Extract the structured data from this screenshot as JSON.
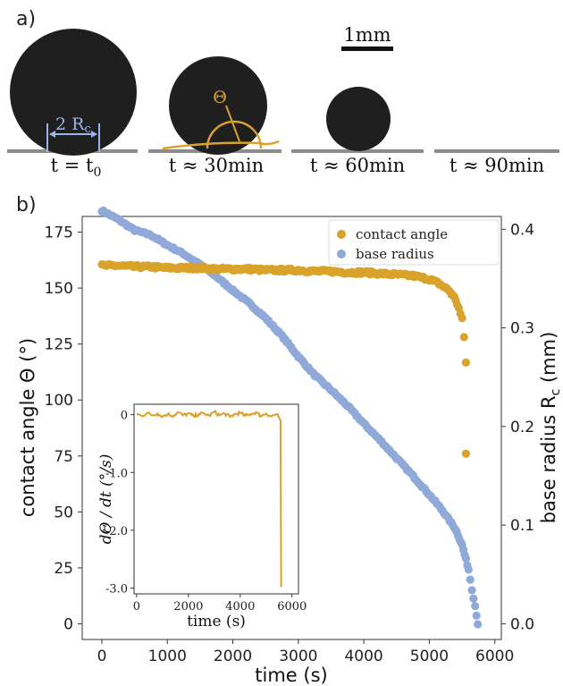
{
  "panel_a": {
    "label": "a)",
    "scale_bar": "1mm",
    "rc_label": "2 R",
    "rc_sub": "c",
    "theta_label": "Θ",
    "captions": [
      {
        "main": "t = t",
        "sub": "0"
      },
      {
        "main": "t ≈ 30min",
        "sub": ""
      },
      {
        "main": "t ≈ 60min",
        "sub": ""
      },
      {
        "main": "t ≈ 90min",
        "sub": ""
      }
    ]
  },
  "panel_b": {
    "label": "b)"
  },
  "colors": {
    "contact_angle": "#d9a22b",
    "base_radius": "#8fa9d9",
    "drop": "#1f1f1f",
    "substrate": "#8c8c8c",
    "annotation_blue": "#9bb5e6",
    "annotation_gold": "#d9a22b"
  },
  "chart_data": [
    {
      "type": "scatter",
      "xlabel": "time (s)",
      "ylabel_left": "contact angle Θ (°)",
      "ylabel_right_main": "base radius R",
      "ylabel_right_sub": "c",
      "ylabel_right_unit": " (mm)",
      "xlim": [
        -300,
        6100
      ],
      "ylim_left": [
        -7,
        182
      ],
      "ylim_right": [
        -0.016,
        0.413
      ],
      "xticks": [
        0,
        1000,
        2000,
        3000,
        4000,
        5000,
        6000
      ],
      "yticks_left": [
        0,
        25,
        50,
        75,
        100,
        125,
        150,
        175
      ],
      "yticks_right": [
        0.0,
        0.1,
        0.2,
        0.3,
        0.4
      ],
      "yticks_right_labels": [
        "0.0",
        "0.1",
        "0.2",
        "0.3",
        "0.4"
      ],
      "legend_position": "top-right",
      "series": [
        {
          "name": "contact angle",
          "axis": "left",
          "x": [
            0,
            250,
            500,
            750,
            1000,
            1250,
            1500,
            1750,
            2000,
            2250,
            2500,
            2750,
            3000,
            3250,
            3500,
            3750,
            4000,
            4250,
            4500,
            4750,
            5000,
            5150,
            5300,
            5400,
            5450,
            5500,
            5530,
            5560
          ],
          "y": [
            160,
            160,
            159.5,
            159.5,
            159,
            159,
            159,
            158.5,
            158.5,
            158.5,
            158,
            158,
            158,
            157.5,
            157.5,
            157,
            157,
            156.5,
            156,
            155.5,
            154,
            152,
            149,
            145,
            141,
            136,
            128,
            117
          ]
        },
        {
          "name": "contact angle",
          "axis": "left",
          "legend": false,
          "x": [
            5560
          ],
          "y": [
            76
          ]
        },
        {
          "name": "base radius",
          "axis": "right",
          "x": [
            0,
            250,
            500,
            750,
            1000,
            1250,
            1500,
            1750,
            2000,
            2250,
            2500,
            2750,
            3000,
            3250,
            3500,
            3750,
            4000,
            4250,
            4500,
            4750,
            5000,
            5200,
            5400,
            5500,
            5600,
            5650,
            5700,
            5740
          ],
          "y": [
            0.419,
            0.41,
            0.399,
            0.394,
            0.384,
            0.375,
            0.364,
            0.352,
            0.338,
            0.325,
            0.31,
            0.292,
            0.271,
            0.252,
            0.237,
            0.221,
            0.203,
            0.186,
            0.168,
            0.15,
            0.131,
            0.115,
            0.096,
            0.08,
            0.055,
            0.035,
            0.018,
            0.0
          ]
        }
      ]
    },
    {
      "type": "line",
      "name": "inset",
      "xlabel": "time (s)",
      "ylabel": "dΘ / dt (°/s)",
      "xlim": [
        -100,
        6250
      ],
      "ylim": [
        -3.1,
        0.18
      ],
      "xticks": [
        0,
        2000,
        4000,
        6000
      ],
      "yticks": [
        0,
        -1.0,
        -2.0,
        -3.0
      ],
      "ytick_labels": [
        "0",
        "-1.0",
        "-2.0",
        "-3.0"
      ],
      "x": [
        0,
        200,
        400,
        600,
        800,
        1000,
        1200,
        1400,
        1600,
        1800,
        2000,
        2200,
        2400,
        2600,
        2800,
        3000,
        3200,
        3400,
        3600,
        3800,
        4000,
        4200,
        4400,
        4600,
        4800,
        5000,
        5200,
        5400,
        5500,
        5560,
        5565,
        5580
      ],
      "y": [
        0.01,
        -0.02,
        0.03,
        -0.01,
        0.02,
        -0.03,
        0.01,
        -0.02,
        0.04,
        -0.01,
        0.02,
        -0.03,
        0.01,
        0.02,
        -0.02,
        0.05,
        -0.01,
        0.02,
        -0.04,
        0.01,
        0.03,
        -0.02,
        0.01,
        0.04,
        -0.02,
        0.02,
        -0.03,
        0.01,
        -0.05,
        -0.1,
        -1.5,
        -2.98
      ]
    }
  ]
}
